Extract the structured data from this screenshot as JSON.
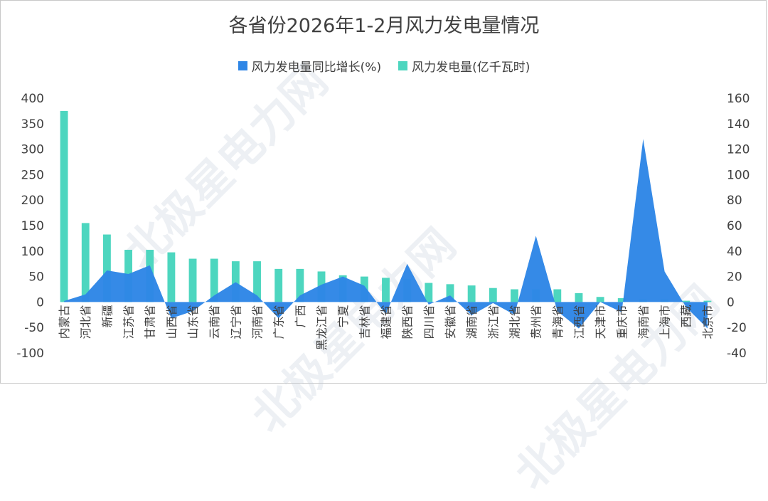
{
  "title": "各省份2026年1-2月风力发电量情况",
  "legend": {
    "growth": "风力发电量同比增长(%)",
    "generation": "风力发电量(亿千瓦时)"
  },
  "watermark": "北极星电力网",
  "colors": {
    "growth": "#2e86e6",
    "generation": "#4dd6bf",
    "grid": "#e3e3e3",
    "text": "#404040"
  },
  "chart_data": {
    "type": "bar",
    "categories": [
      "内蒙古",
      "河北省",
      "新疆",
      "江苏省",
      "甘肃省",
      "山西省",
      "山东省",
      "云南省",
      "辽宁省",
      "河南省",
      "广东省",
      "广西",
      "黑龙江省",
      "宁夏",
      "吉林省",
      "福建省",
      "陕西省",
      "四川省",
      "安徽省",
      "湖南省",
      "浙江省",
      "湖北省",
      "贵州省",
      "青海省",
      "江西省",
      "天津市",
      "重庆市",
      "海南省",
      "上海市",
      "西藏",
      "北京市"
    ],
    "series": [
      {
        "name": "风力发电量同比增长(%)",
        "type": "area",
        "axis": "left",
        "values": [
          2,
          15,
          62,
          55,
          72,
          -32,
          -18,
          13,
          39,
          13,
          -32,
          13,
          34,
          50,
          32,
          -24,
          75,
          -5,
          13,
          -26,
          -2,
          -25,
          130,
          -18,
          -52,
          0,
          -20,
          320,
          60,
          -10,
          -52
        ]
      },
      {
        "name": "风力发电量(亿千瓦时)",
        "type": "bar",
        "axis": "right",
        "values": [
          150,
          62,
          53,
          41,
          41,
          39,
          34,
          34,
          32,
          32,
          26,
          26,
          24,
          21,
          20,
          19,
          18,
          15,
          14,
          13,
          11,
          10,
          10,
          10,
          7,
          4,
          3,
          2,
          2,
          1,
          1
        ]
      }
    ],
    "ylim_left": [
      -100,
      400
    ],
    "yticks_left": [
      -100,
      -50,
      0,
      50,
      100,
      150,
      200,
      250,
      300,
      350,
      400
    ],
    "ylim_right": [
      -40,
      160
    ],
    "yticks_right": [
      -40,
      -20,
      0,
      20,
      40,
      60,
      80,
      100,
      120,
      140,
      160
    ],
    "grid": false,
    "legend_position": "top-center"
  }
}
